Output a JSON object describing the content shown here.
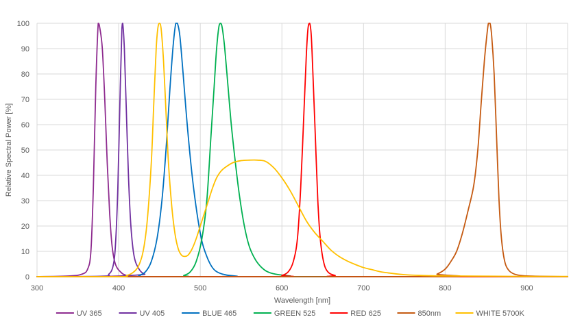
{
  "chart_data": {
    "type": "line",
    "title": "",
    "xlabel": "Wavelength [nm]",
    "ylabel": "Relative Spectral Power [%]",
    "xlim": [
      300,
      950
    ],
    "ylim": [
      0,
      100
    ],
    "xticks": [
      300,
      400,
      500,
      600,
      700,
      800,
      900
    ],
    "yticks": [
      0,
      10,
      20,
      30,
      40,
      50,
      60,
      70,
      80,
      90,
      100
    ],
    "grid": true,
    "legend_position": "bottom",
    "series": [
      {
        "name": "UV 365",
        "color": "#8e2b8f",
        "points": [
          [
            300,
            0
          ],
          [
            340,
            0.3
          ],
          [
            355,
            1
          ],
          [
            362,
            3
          ],
          [
            366,
            10
          ],
          [
            369,
            35
          ],
          [
            372,
            75
          ],
          [
            375,
            100
          ],
          [
            377,
            98
          ],
          [
            380,
            90
          ],
          [
            383,
            70
          ],
          [
            386,
            45
          ],
          [
            389,
            25
          ],
          [
            392,
            12
          ],
          [
            396,
            5
          ],
          [
            402,
            2
          ],
          [
            410,
            0.5
          ],
          [
            430,
            0
          ],
          [
            950,
            0
          ]
        ]
      },
      {
        "name": "UV 405",
        "color": "#7030a0",
        "points": [
          [
            300,
            0
          ],
          [
            380,
            0.2
          ],
          [
            388,
            1
          ],
          [
            393,
            4
          ],
          [
            396,
            12
          ],
          [
            399,
            35
          ],
          [
            402,
            75
          ],
          [
            404,
            98
          ],
          [
            405,
            100
          ],
          [
            407,
            90
          ],
          [
            409,
            70
          ],
          [
            412,
            40
          ],
          [
            415,
            20
          ],
          [
            419,
            8
          ],
          [
            425,
            3
          ],
          [
            432,
            1
          ],
          [
            445,
            0
          ],
          [
            950,
            0
          ]
        ]
      },
      {
        "name": "BLUE 465",
        "color": "#0070c0",
        "points": [
          [
            300,
            0
          ],
          [
            415,
            0
          ],
          [
            425,
            0.5
          ],
          [
            433,
            2
          ],
          [
            440,
            6
          ],
          [
            447,
            15
          ],
          [
            453,
            30
          ],
          [
            458,
            50
          ],
          [
            463,
            75
          ],
          [
            467,
            92
          ],
          [
            470,
            100
          ],
          [
            472,
            100
          ],
          [
            475,
            95
          ],
          [
            479,
            80
          ],
          [
            484,
            60
          ],
          [
            490,
            40
          ],
          [
            496,
            25
          ],
          [
            502,
            14
          ],
          [
            508,
            8
          ],
          [
            514,
            4
          ],
          [
            520,
            2
          ],
          [
            530,
            0.8
          ],
          [
            545,
            0.2
          ],
          [
            560,
            0
          ],
          [
            950,
            0
          ]
        ]
      },
      {
        "name": "GREEN 525",
        "color": "#00b050",
        "points": [
          [
            300,
            0
          ],
          [
            470,
            0
          ],
          [
            480,
            0.5
          ],
          [
            488,
            2
          ],
          [
            495,
            6
          ],
          [
            502,
            15
          ],
          [
            508,
            30
          ],
          [
            513,
            55
          ],
          [
            517,
            75
          ],
          [
            520,
            90
          ],
          [
            523,
            99
          ],
          [
            525,
            100
          ],
          [
            527,
            98
          ],
          [
            530,
            90
          ],
          [
            534,
            75
          ],
          [
            538,
            60
          ],
          [
            543,
            45
          ],
          [
            548,
            32
          ],
          [
            554,
            20
          ],
          [
            560,
            12
          ],
          [
            567,
            7
          ],
          [
            574,
            4
          ],
          [
            582,
            2
          ],
          [
            592,
            1
          ],
          [
            610,
            0.3
          ],
          [
            630,
            0
          ],
          [
            950,
            0
          ]
        ]
      },
      {
        "name": "RED 625",
        "color": "#ff0000",
        "points": [
          [
            300,
            0
          ],
          [
            590,
            0
          ],
          [
            600,
            0.5
          ],
          [
            608,
            2
          ],
          [
            614,
            6
          ],
          [
            619,
            15
          ],
          [
            623,
            35
          ],
          [
            627,
            65
          ],
          [
            630,
            88
          ],
          [
            632,
            98
          ],
          [
            634,
            100
          ],
          [
            636,
            95
          ],
          [
            638,
            80
          ],
          [
            641,
            55
          ],
          [
            644,
            30
          ],
          [
            647,
            15
          ],
          [
            651,
            6
          ],
          [
            656,
            2
          ],
          [
            665,
            0.5
          ],
          [
            680,
            0
          ],
          [
            950,
            0
          ]
        ]
      },
      {
        "name": "850nm",
        "color": "#c55a11",
        "points": [
          [
            300,
            0
          ],
          [
            780,
            0
          ],
          [
            790,
            1
          ],
          [
            800,
            3
          ],
          [
            807,
            6
          ],
          [
            814,
            10
          ],
          [
            821,
            17
          ],
          [
            828,
            26
          ],
          [
            835,
            36
          ],
          [
            840,
            50
          ],
          [
            844,
            68
          ],
          [
            848,
            85
          ],
          [
            851,
            95
          ],
          [
            853,
            100
          ],
          [
            855,
            100
          ],
          [
            857,
            95
          ],
          [
            860,
            80
          ],
          [
            863,
            55
          ],
          [
            866,
            30
          ],
          [
            869,
            15
          ],
          [
            873,
            6
          ],
          [
            878,
            2.5
          ],
          [
            885,
            1
          ],
          [
            895,
            0.4
          ],
          [
            910,
            0.2
          ],
          [
            950,
            0
          ]
        ]
      },
      {
        "name": "WHITE 5700K",
        "color": "#ffc000",
        "points": [
          [
            300,
            0
          ],
          [
            400,
            0
          ],
          [
            410,
            0.5
          ],
          [
            417,
            1.5
          ],
          [
            424,
            4
          ],
          [
            430,
            10
          ],
          [
            435,
            22
          ],
          [
            440,
            45
          ],
          [
            443,
            68
          ],
          [
            446,
            90
          ],
          [
            448,
            98
          ],
          [
            450,
            100
          ],
          [
            452,
            98
          ],
          [
            455,
            85
          ],
          [
            458,
            65
          ],
          [
            461,
            45
          ],
          [
            465,
            28
          ],
          [
            469,
            17
          ],
          [
            473,
            11
          ],
          [
            477,
            8.5
          ],
          [
            481,
            8
          ],
          [
            485,
            8.5
          ],
          [
            490,
            11
          ],
          [
            495,
            15
          ],
          [
            500,
            20
          ],
          [
            505,
            25
          ],
          [
            510,
            30
          ],
          [
            515,
            35
          ],
          [
            520,
            39
          ],
          [
            525,
            41.5
          ],
          [
            530,
            43
          ],
          [
            540,
            45
          ],
          [
            550,
            45.8
          ],
          [
            560,
            46
          ],
          [
            570,
            46
          ],
          [
            580,
            45.5
          ],
          [
            590,
            43
          ],
          [
            600,
            39
          ],
          [
            610,
            34
          ],
          [
            620,
            28
          ],
          [
            630,
            22
          ],
          [
            640,
            17.5
          ],
          [
            650,
            14
          ],
          [
            660,
            10.5
          ],
          [
            670,
            8
          ],
          [
            680,
            6.2
          ],
          [
            690,
            4.8
          ],
          [
            700,
            3.6
          ],
          [
            710,
            2.8
          ],
          [
            720,
            2
          ],
          [
            730,
            1.5
          ],
          [
            740,
            1.1
          ],
          [
            750,
            0.8
          ],
          [
            760,
            0.6
          ],
          [
            780,
            0.4
          ],
          [
            800,
            0.3
          ],
          [
            850,
            0.2
          ],
          [
            900,
            0.1
          ],
          [
            950,
            0.1
          ]
        ]
      }
    ]
  }
}
